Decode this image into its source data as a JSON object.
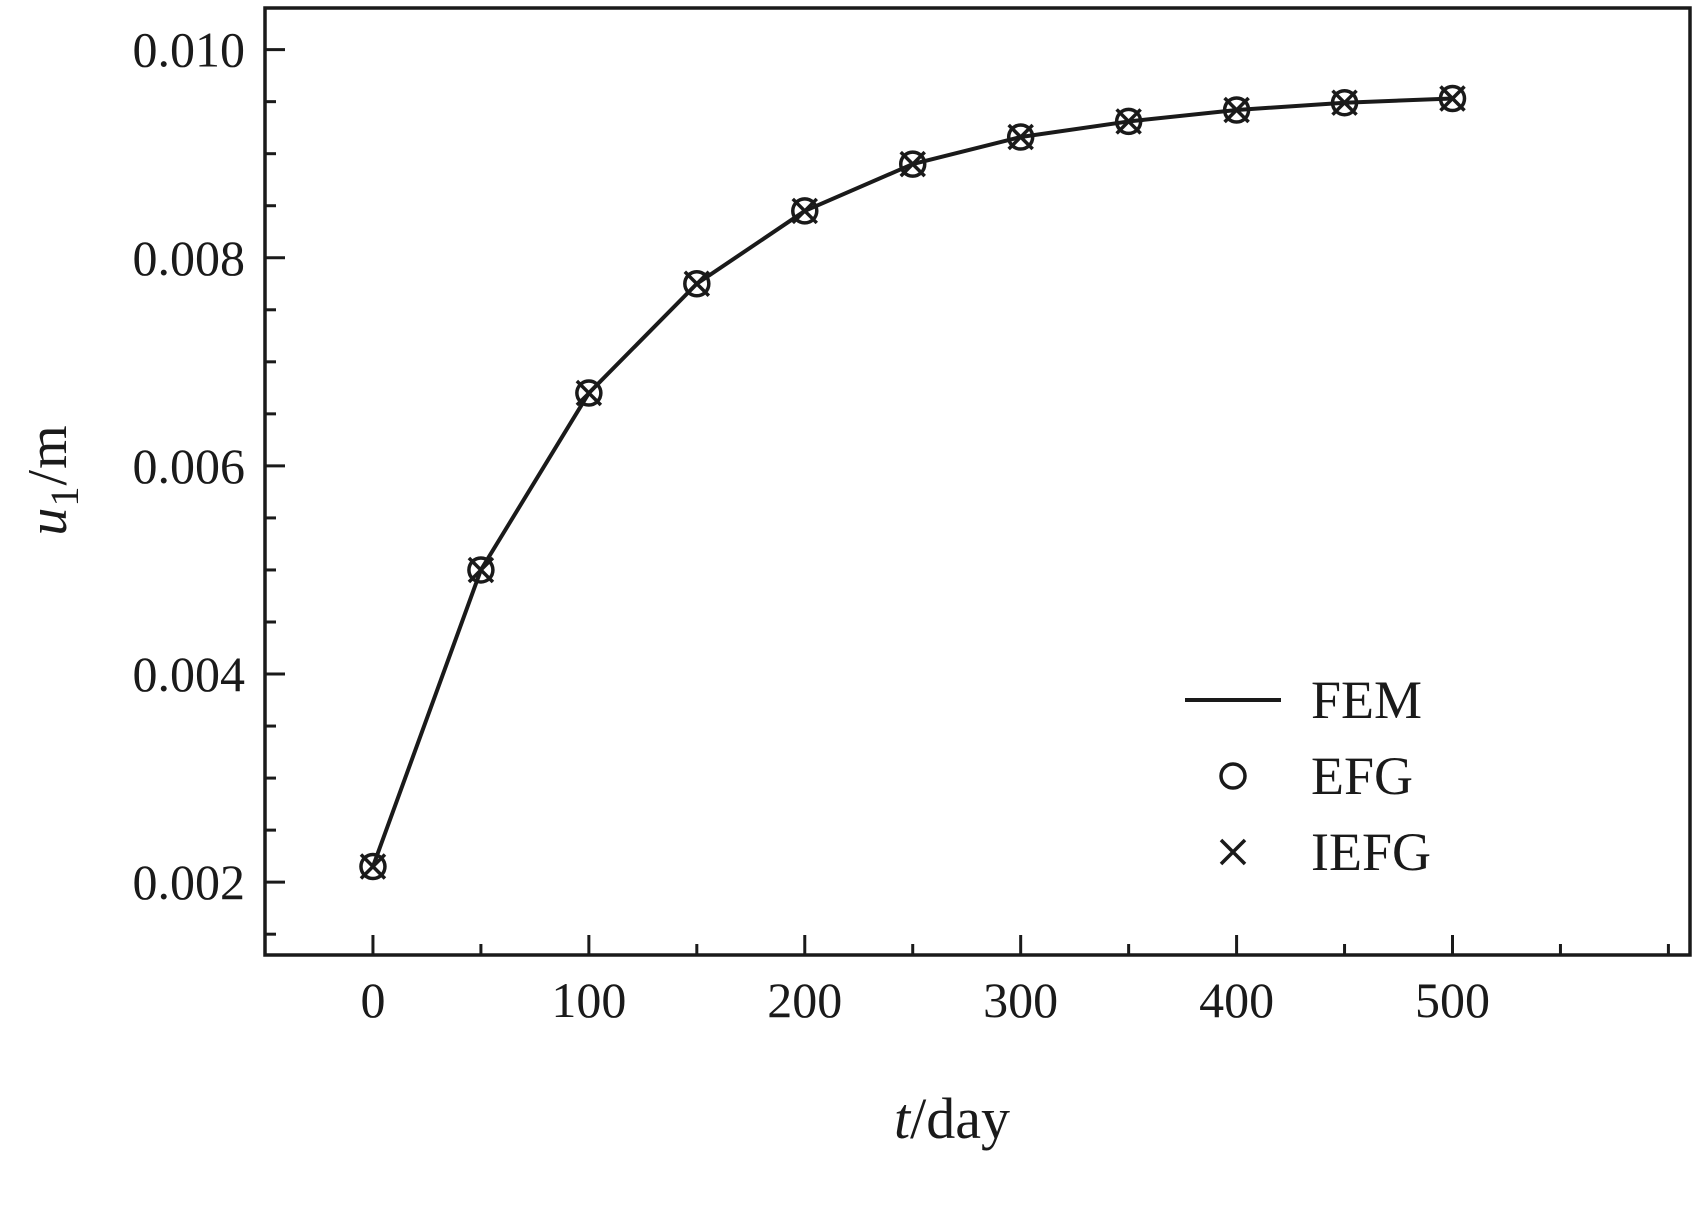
{
  "figure": {
    "background": "#ffffff",
    "ink_color": "#1a1a1a"
  },
  "chart_data": {
    "type": "line",
    "title": "",
    "xlabel": "t/day",
    "ylabel": "u1/m",
    "xlabel_parts": {
      "var": "t",
      "unit": "/day"
    },
    "ylabel_parts": {
      "var": "u",
      "sub": "1",
      "unit": "/m"
    },
    "xlim": [
      -50,
      610
    ],
    "ylim": [
      0.0013,
      0.0104
    ],
    "grid": false,
    "legend_position": "lower right",
    "x_major_ticks": [
      0,
      100,
      200,
      300,
      400,
      500
    ],
    "x_tick_labels": [
      "0",
      "100",
      "200",
      "300",
      "400",
      "500"
    ],
    "x_minor_step": 50,
    "y_tick_values": [
      0.002,
      0.004,
      0.006,
      0.008,
      0.01
    ],
    "y_tick_labels": [
      "0.002",
      "0.004",
      "0.006",
      "0.008",
      "0.010"
    ],
    "y_minor_step": 0.0005,
    "x": [
      0,
      50,
      100,
      150,
      200,
      250,
      300,
      350,
      400,
      450,
      500
    ],
    "series": [
      {
        "name": "FEM",
        "marker": "line",
        "values": [
          0.00215,
          0.005,
          0.0067,
          0.00775,
          0.00845,
          0.0089,
          0.00916,
          0.00931,
          0.00942,
          0.00949,
          0.00953
        ]
      },
      {
        "name": "EFG",
        "marker": "circle",
        "values": [
          0.00215,
          0.005,
          0.0067,
          0.00775,
          0.00845,
          0.0089,
          0.00916,
          0.00931,
          0.00942,
          0.00949,
          0.00953
        ]
      },
      {
        "name": "IEFG",
        "marker": "x",
        "values": [
          0.00215,
          0.005,
          0.0067,
          0.00775,
          0.00845,
          0.0089,
          0.00916,
          0.00931,
          0.00942,
          0.00949,
          0.00953
        ]
      }
    ]
  }
}
